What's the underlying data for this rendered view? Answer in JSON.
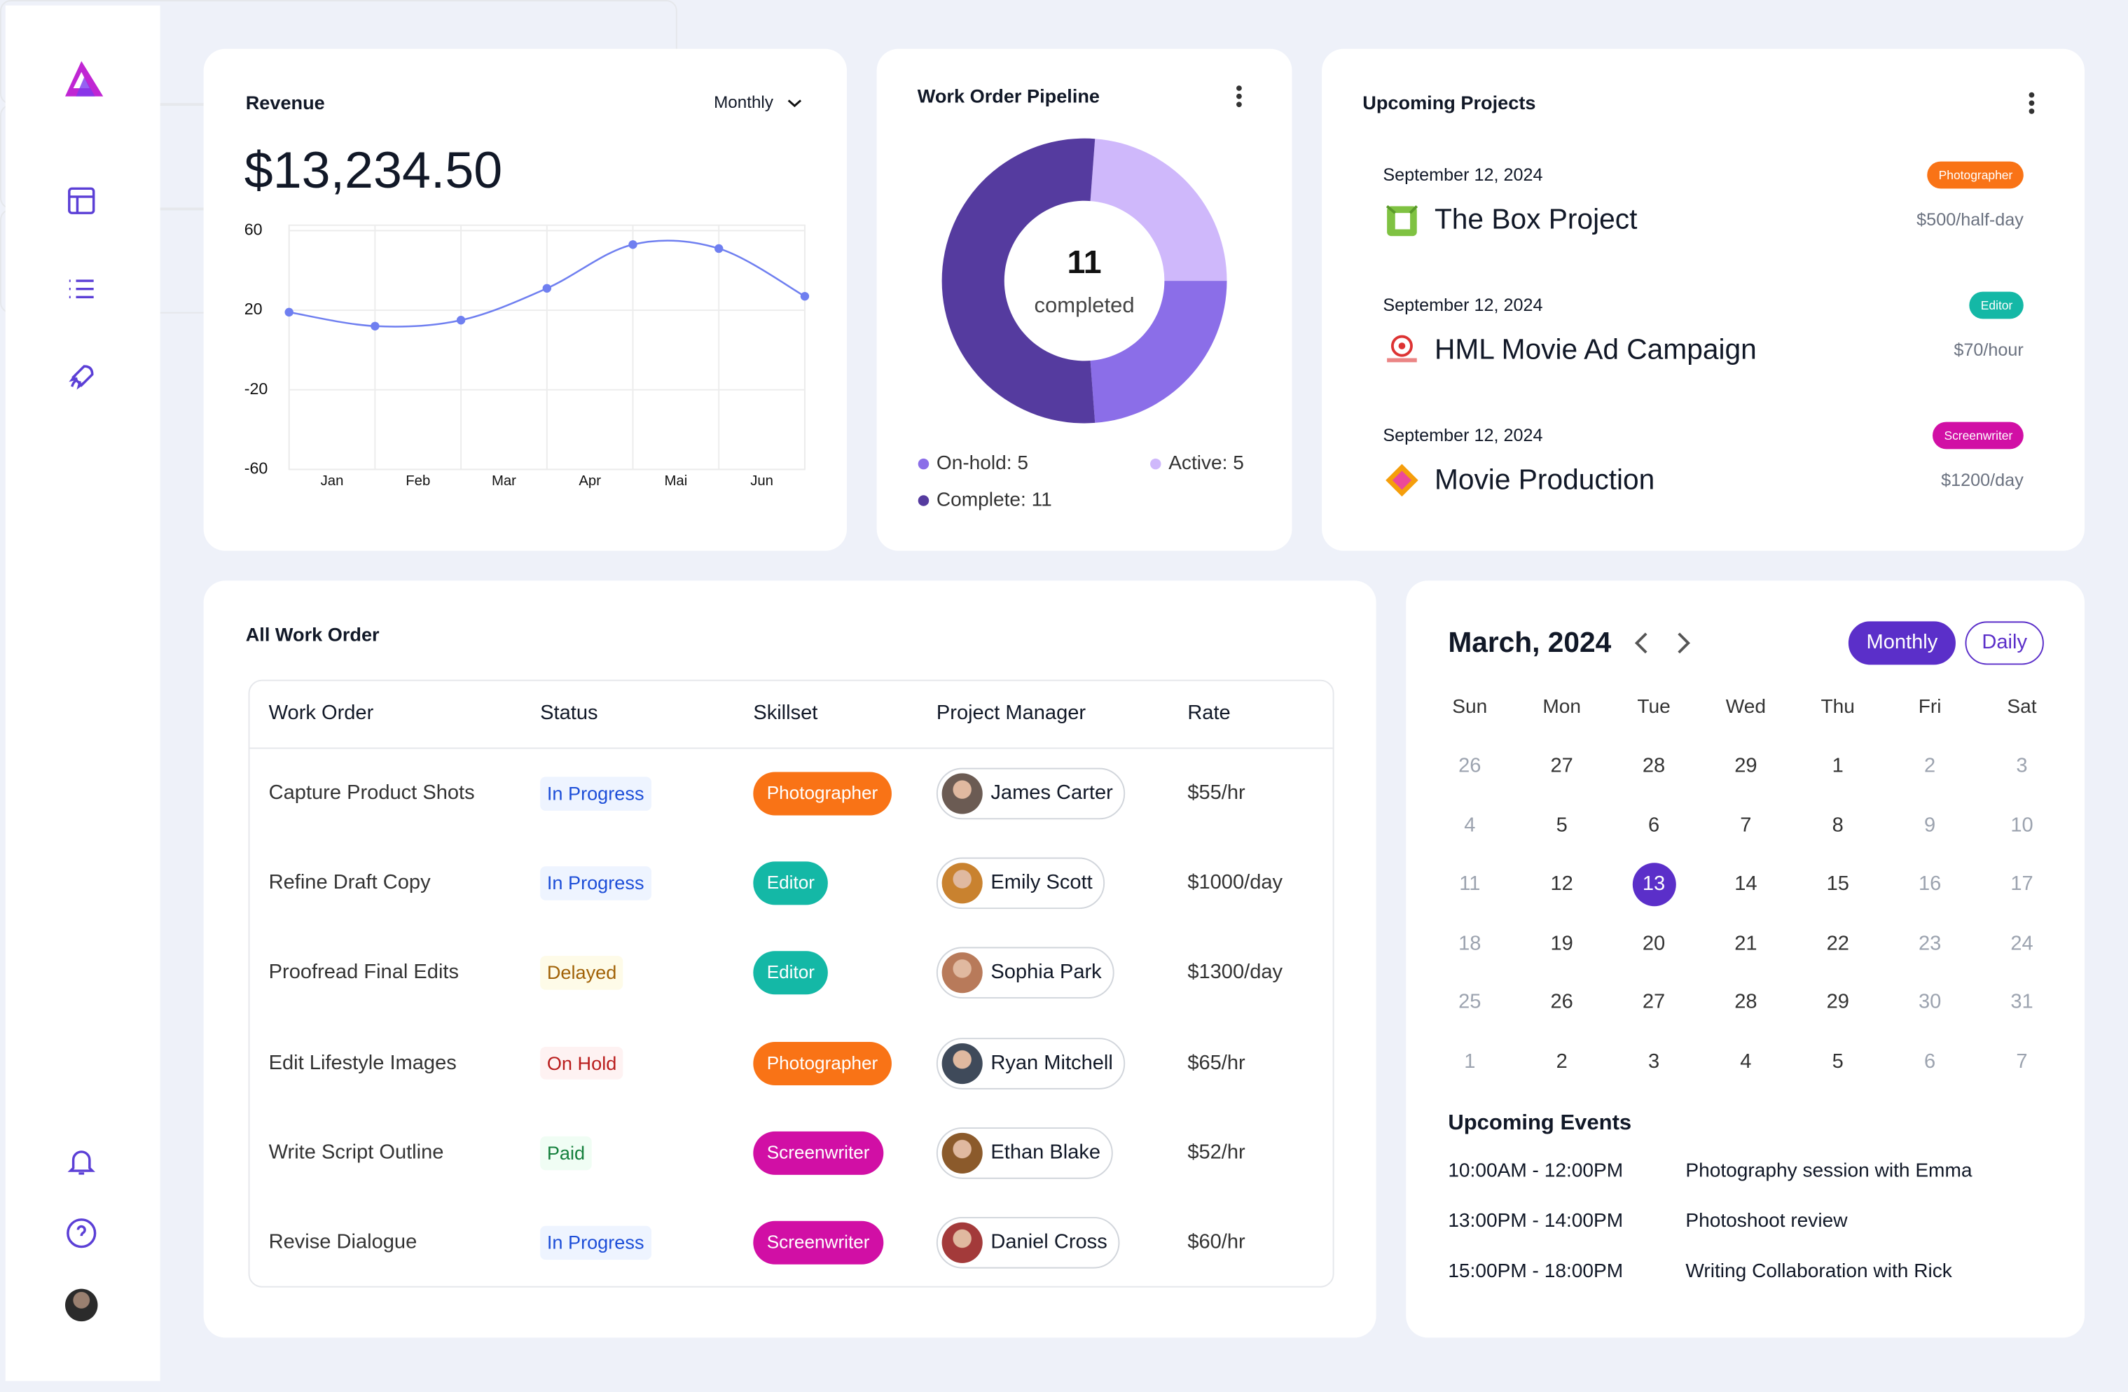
{
  "chart_data": [
    {
      "type": "line",
      "title": "Revenue",
      "period": "Monthly",
      "total": "$13,234.50",
      "categories": [
        "Jan",
        "Feb",
        "Mar",
        "Apr",
        "Mai",
        "Jun",
        null
      ],
      "values": [
        19,
        12,
        15,
        31,
        53,
        51,
        27
      ],
      "color": "#6f7ff0",
      "ylim": [
        -60,
        60
      ],
      "yticks": [
        -60,
        -20,
        20,
        60
      ],
      "grid": true
    },
    {
      "type": "donut",
      "title": "Work Order Pipeline",
      "values": [
        5,
        5,
        11
      ],
      "value_labels": [
        "On-hold: 5",
        "Active: 5",
        "Complete: 11"
      ],
      "colors": [
        "#8b6ee8",
        "#cfb8fb",
        "#553b9f"
      ],
      "center_label": "completed"
    }
  ],
  "projects": {
    "title": "Upcoming Projects",
    "items": [
      {
        "date": "September 12, 2024",
        "tag": "Photographer",
        "tag_color": "#f97316",
        "name": "The Box Project",
        "rate": "$500/half-day"
      },
      {
        "date": "September 12, 2024",
        "tag": "Editor",
        "tag_color": "#14b8a6",
        "name": "HML Movie Ad Campaign",
        "rate": "$70/hour"
      },
      {
        "date": "September 12, 2024",
        "tag": "Screenwriter",
        "tag_color": "#d10fa5",
        "name": "Movie Production",
        "rate": "$1200/day"
      }
    ]
  },
  "work_orders": {
    "title": "All Work Order",
    "columns": [
      "Work Order",
      "Status",
      "Skillset",
      "Project Manager",
      "Rate"
    ],
    "rows": [
      {
        "order": "Capture Product Shots",
        "status": "In Progress",
        "status_color": "#1d4ed8",
        "status_bg": "#eef4ff",
        "skill": "Photographer",
        "skill_color": "#f97316",
        "manager": "James Carter",
        "rate": "$55/hr"
      },
      {
        "order": "Refine Draft Copy",
        "status": "In Progress",
        "status_color": "#1d4ed8",
        "status_bg": "#eef4ff",
        "skill": "Editor",
        "skill_color": "#14b8a6",
        "manager": "Emily Scott",
        "rate": "$1000/day"
      },
      {
        "order": "Proofread Final Edits",
        "status": "Delayed",
        "status_color": "#a16207",
        "status_bg": "#fefbe8",
        "skill": "Editor",
        "skill_color": "#14b8a6",
        "manager": "Sophia Park",
        "rate": "$1300/day"
      },
      {
        "order": "Edit Lifestyle Images",
        "status": "On Hold",
        "status_color": "#b91c1c",
        "status_bg": "#fef2f2",
        "skill": "Photographer",
        "skill_color": "#f97316",
        "manager": "Ryan Mitchell",
        "rate": "$65/hr"
      },
      {
        "order": "Write Script Outline",
        "status": "Paid",
        "status_color": "#15803d",
        "status_bg": "#f0fdf4",
        "skill": "Screenwriter",
        "skill_color": "#d10fa5",
        "manager": "Ethan Blake",
        "rate": "$52/hr"
      },
      {
        "order": "Revise Dialogue",
        "status": "In Progress",
        "status_color": "#1d4ed8",
        "status_bg": "#eef4ff",
        "skill": "Screenwriter",
        "skill_color": "#d10fa5",
        "manager": "Daniel Cross",
        "rate": "$60/hr"
      }
    ]
  },
  "calendar": {
    "title": "March, 2024",
    "views": [
      "Monthly",
      "Daily"
    ],
    "weekdays": [
      "Sun",
      "Mon",
      "Tue",
      "Wed",
      "Thu",
      "Fri",
      "Sat"
    ],
    "weeks": [
      [
        26,
        27,
        28,
        29,
        1,
        2,
        3
      ],
      [
        4,
        5,
        6,
        7,
        8,
        9,
        10
      ],
      [
        11,
        12,
        13,
        14,
        15,
        16,
        17
      ],
      [
        18,
        19,
        20,
        21,
        22,
        23,
        24
      ],
      [
        25,
        26,
        27,
        28,
        29,
        30,
        31
      ],
      [
        1,
        2,
        3,
        4,
        5,
        6,
        7
      ]
    ],
    "selected": 13,
    "events_title": "Upcoming Events",
    "events": [
      {
        "time": "10:00AM - 12:00PM",
        "title": "Photography session with Emma"
      },
      {
        "time": "13:00PM - 14:00PM",
        "title": "Photoshoot review"
      },
      {
        "time": "15:00PM - 18:00PM",
        "title": "Writing Collaboration with Rick"
      }
    ]
  }
}
